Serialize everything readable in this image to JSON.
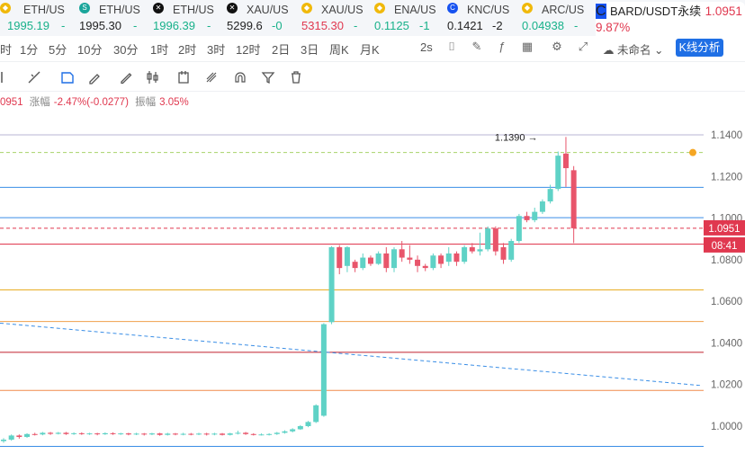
{
  "tickers": [
    {
      "symbol": "ETH/US",
      "price": "1995.19",
      "change": "-",
      "price_color": "up",
      "icon": "binance-icon"
    },
    {
      "symbol": "ETH/US",
      "price": "1995.30",
      "change": "-",
      "price_color": "blk",
      "icon": "skew-icon"
    },
    {
      "symbol": "ETH/US",
      "price": "1996.39",
      "change": "-",
      "price_color": "up",
      "icon": "okx-icon"
    },
    {
      "symbol": "XAU/US",
      "price": "5299.6",
      "change": "-0",
      "price_color": "blk",
      "icon": "okx-icon"
    },
    {
      "symbol": "XAU/US",
      "price": "5315.30",
      "change": "-",
      "price_color": "dn",
      "icon": "binance-icon"
    },
    {
      "symbol": "ENA/US",
      "price": "0.1125",
      "change": "-1",
      "price_color": "up",
      "icon": "binance-icon"
    },
    {
      "symbol": "KNC/US",
      "price": "0.1421",
      "change": "-2",
      "price_color": "blk",
      "icon": "coinbase-icon"
    },
    {
      "symbol": "ARC/US",
      "price": "0.04938",
      "change": "-",
      "price_color": "up",
      "icon": "binance-icon"
    }
  ],
  "active_ticker": {
    "symbol": "BARD/USDT永续",
    "price": "1.0951",
    "change": "9.87%"
  },
  "timeframes": [
    "时",
    "1分",
    "5分",
    "10分",
    "30分",
    "1时",
    "2时",
    "3时",
    "12时",
    "2日",
    "3日",
    "周K",
    "月K"
  ],
  "toolbar": {
    "interval": "2s",
    "unnamed": "未命名",
    "kline_button": "K线分析"
  },
  "info": {
    "price": "0951",
    "change_label": "涨幅",
    "change_value": "-2.47%(-0.0277)",
    "amp_label": "振幅",
    "amp_value": "3.05%"
  },
  "chart_data": {
    "type": "candlestick",
    "y_ticks": [
      "1.1400",
      "1.1200",
      "1.1000",
      "1.0800",
      "1.0600",
      "1.0400",
      "1.0200",
      "1.0000"
    ],
    "ylim": [
      0.986,
      1.146
    ],
    "current_price": "1.0951",
    "countdown": "08:41",
    "high_marker": "1.1390",
    "colors": {
      "up": "#5fd2c6",
      "down": "#e8556b"
    },
    "horizontal_lines": [
      {
        "value": 1.1315,
        "color": "#a8d36a",
        "dashed": true
      },
      {
        "value": 1.1148,
        "color": "#3a8ee6",
        "dashed": false
      },
      {
        "value": 1.1002,
        "color": "#3a8ee6",
        "dashed": false
      },
      {
        "value": 1.0951,
        "color": "#e0384f",
        "dashed": true
      },
      {
        "value": 1.0875,
        "color": "#e0384f",
        "dashed": false
      },
      {
        "value": 1.0655,
        "color": "#e6a817",
        "dashed": false
      },
      {
        "value": 1.0503,
        "color": "#f0a04b",
        "dashed": false
      },
      {
        "value": 1.0355,
        "color": "#c0202e",
        "dashed": false
      },
      {
        "value": 1.0172,
        "color": "#f08a4b",
        "dashed": false
      },
      {
        "value": 0.9903,
        "color": "#3a8ee6",
        "dashed": false
      },
      {
        "value": 1.14,
        "color": "#b9b4d6",
        "dashed": false
      }
    ],
    "trend_line": {
      "from": 1.0495,
      "to": 1.0195,
      "color": "#3a8ee6"
    },
    "candles": [
      [
        0.9928,
        0.9935,
        0.992,
        0.9942
      ],
      [
        0.9935,
        0.9955,
        0.993,
        0.996
      ],
      [
        0.9955,
        0.9948,
        0.994,
        0.996
      ],
      [
        0.9948,
        0.9962,
        0.9944,
        0.9966
      ],
      [
        0.9962,
        0.996,
        0.9955,
        0.9968
      ],
      [
        0.996,
        0.9968,
        0.9956,
        0.9972
      ],
      [
        0.9968,
        0.9963,
        0.9958,
        0.9972
      ],
      [
        0.9963,
        0.9968,
        0.996,
        0.9972
      ],
      [
        0.9968,
        0.9962,
        0.9958,
        0.9972
      ],
      [
        0.9962,
        0.9966,
        0.9958,
        0.997
      ],
      [
        0.9966,
        0.9962,
        0.9958,
        0.997
      ],
      [
        0.9962,
        0.9965,
        0.9958,
        0.9968
      ],
      [
        0.9965,
        0.9961,
        0.9956,
        0.9968
      ],
      [
        0.9961,
        0.9966,
        0.9958,
        0.997
      ],
      [
        0.9966,
        0.9962,
        0.9958,
        0.997
      ],
      [
        0.9962,
        0.9965,
        0.9958,
        0.9968
      ],
      [
        0.9965,
        0.996,
        0.9956,
        0.9968
      ],
      [
        0.996,
        0.9964,
        0.9957,
        0.9968
      ],
      [
        0.9964,
        0.996,
        0.9955,
        0.9967
      ],
      [
        0.996,
        0.9965,
        0.9957,
        0.9968
      ],
      [
        0.9965,
        0.9958,
        0.9954,
        0.9968
      ],
      [
        0.9958,
        0.9964,
        0.9955,
        0.9968
      ],
      [
        0.9964,
        0.996,
        0.9956,
        0.9967
      ],
      [
        0.996,
        0.9963,
        0.9956,
        0.9968
      ],
      [
        0.9963,
        0.9961,
        0.9956,
        0.9967
      ],
      [
        0.9961,
        0.9964,
        0.9957,
        0.9968
      ],
      [
        0.9964,
        0.996,
        0.9955,
        0.9968
      ],
      [
        0.996,
        0.9964,
        0.9956,
        0.9968
      ],
      [
        0.9964,
        0.9958,
        0.9955,
        0.9967
      ],
      [
        0.9958,
        0.9965,
        0.9955,
        0.9968
      ],
      [
        0.9965,
        0.9968,
        0.996,
        0.9978
      ],
      [
        0.9968,
        0.9962,
        0.9958,
        0.9972
      ],
      [
        0.9962,
        0.996,
        0.9955,
        0.9966
      ],
      [
        0.996,
        0.996,
        0.9955,
        0.9965
      ],
      [
        0.996,
        0.9962,
        0.9955,
        0.9966
      ],
      [
        0.9962,
        0.9968,
        0.9958,
        0.9972
      ],
      [
        0.9968,
        0.9975,
        0.9964,
        0.998
      ],
      [
        0.9975,
        0.9985,
        0.997,
        0.999
      ],
      [
        0.9985,
        1.0,
        0.9982,
        1.0005
      ],
      [
        1.0,
        1.002,
        0.9995,
        1.0025
      ],
      [
        1.002,
        1.01,
        1.0015,
        1.0105
      ],
      [
        1.005,
        1.049,
        1.0045,
        1.0495
      ],
      [
        1.05,
        1.086,
        1.049,
        1.0865
      ],
      [
        1.086,
        1.076,
        1.073,
        1.087
      ],
      [
        1.077,
        1.086,
        1.074,
        1.0865
      ],
      [
        1.079,
        1.076,
        1.074,
        1.08
      ],
      [
        1.076,
        1.081,
        1.075,
        1.083
      ],
      [
        1.081,
        1.078,
        1.077,
        1.082
      ],
      [
        1.078,
        1.083,
        1.0775,
        1.084
      ],
      [
        1.083,
        1.076,
        1.074,
        1.086
      ],
      [
        1.076,
        1.085,
        1.074,
        1.086
      ],
      [
        1.085,
        1.081,
        1.079,
        1.089
      ],
      [
        1.081,
        1.08,
        1.078,
        1.087
      ],
      [
        1.08,
        1.077,
        1.074,
        1.082
      ],
      [
        1.077,
        1.076,
        1.0745,
        1.078
      ],
      [
        1.076,
        1.082,
        1.075,
        1.083
      ],
      [
        1.082,
        1.078,
        1.076,
        1.083
      ],
      [
        1.079,
        1.083,
        1.077,
        1.086
      ],
      [
        1.083,
        1.079,
        1.077,
        1.084
      ],
      [
        1.079,
        1.086,
        1.078,
        1.087
      ],
      [
        1.086,
        1.084,
        1.083,
        1.088
      ],
      [
        1.084,
        1.085,
        1.082,
        1.093
      ],
      [
        1.085,
        1.095,
        1.084,
        1.096
      ],
      [
        1.095,
        1.084,
        1.082,
        1.096
      ],
      [
        1.086,
        1.08,
        1.078,
        1.088
      ],
      [
        1.08,
        1.089,
        1.079,
        1.09
      ],
      [
        1.089,
        1.101,
        1.088,
        1.102
      ],
      [
        1.101,
        1.099,
        1.098,
        1.103
      ],
      [
        1.099,
        1.103,
        1.098,
        1.105
      ],
      [
        1.103,
        1.108,
        1.102,
        1.109
      ],
      [
        1.108,
        1.114,
        1.107,
        1.116
      ],
      [
        1.114,
        1.13,
        1.113,
        1.132
      ],
      [
        1.131,
        1.124,
        1.115,
        1.139
      ],
      [
        1.123,
        1.0951,
        1.088,
        1.125
      ]
    ]
  }
}
